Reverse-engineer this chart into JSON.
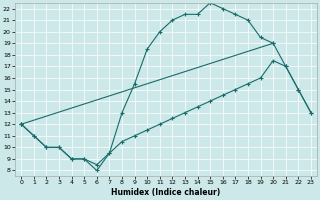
{
  "xlabel": "Humidex (Indice chaleur)",
  "xlim": [
    -0.5,
    23.5
  ],
  "ylim": [
    7.5,
    22.5
  ],
  "xticks": [
    0,
    1,
    2,
    3,
    4,
    5,
    6,
    7,
    8,
    9,
    10,
    11,
    12,
    13,
    14,
    15,
    16,
    17,
    18,
    19,
    20,
    21,
    22,
    23
  ],
  "yticks": [
    8,
    9,
    10,
    11,
    12,
    13,
    14,
    15,
    16,
    17,
    18,
    19,
    20,
    21,
    22
  ],
  "line_color": "#1a6b6b",
  "bg_color": "#cce8e8",
  "grid_color": "#ffffff",
  "line1_x": [
    0,
    1,
    2,
    3,
    4,
    5,
    6,
    7,
    8,
    9,
    10,
    11,
    12,
    13,
    14,
    15,
    16,
    17,
    18,
    19,
    20
  ],
  "line1_y": [
    12,
    11,
    10,
    10,
    9,
    9,
    8,
    9.5,
    13,
    15.5,
    18.5,
    20,
    21,
    21.5,
    21.5,
    22.5,
    22,
    21.5,
    21,
    19.5,
    19
  ],
  "line2_x": [
    0,
    1,
    2,
    3,
    4,
    5,
    6,
    7,
    8,
    9,
    10,
    11,
    12,
    13,
    14,
    15,
    16,
    17,
    18,
    19,
    20,
    21,
    22,
    23
  ],
  "line2_y": [
    12,
    11,
    10,
    10,
    9,
    9,
    8.5,
    9.5,
    10.5,
    11,
    11.5,
    12,
    12.5,
    13,
    13.5,
    14,
    14.5,
    15,
    15.5,
    16,
    17.5,
    17,
    15,
    13
  ],
  "line3_x": [
    0,
    20,
    21,
    22,
    23
  ],
  "line3_y": [
    12,
    19,
    17,
    15,
    13
  ]
}
